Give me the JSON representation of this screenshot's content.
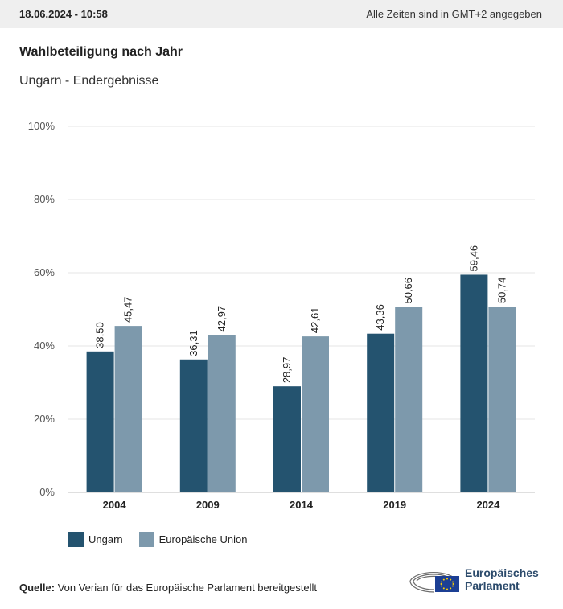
{
  "header": {
    "timestamp": "18.06.2024 - 10:58",
    "timezone_note": "Alle Zeiten sind in GMT+2 angegeben"
  },
  "title": "Wahlbeteiligung nach Jahr",
  "subtitle": "Ungarn - Endergebnisse",
  "colors": {
    "ungarn": "#24536f",
    "eu": "#7d99ac",
    "grid": "#e4e4e4",
    "axis": "#bfbfbf",
    "brand": "#2b4a6b"
  },
  "chart_data": {
    "type": "bar",
    "categories": [
      "2004",
      "2009",
      "2014",
      "2019",
      "2024"
    ],
    "series": [
      {
        "name": "Ungarn",
        "values": [
          38.5,
          36.31,
          28.97,
          43.36,
          59.46
        ],
        "labels": [
          "38,50",
          "36,31",
          "28,97",
          "43,36",
          "59,46"
        ]
      },
      {
        "name": "Europäische Union",
        "values": [
          45.47,
          42.97,
          42.61,
          50.66,
          50.74
        ],
        "labels": [
          "45,47",
          "42,97",
          "42,61",
          "50,66",
          "50,74"
        ]
      }
    ],
    "ylim": [
      0,
      100
    ],
    "yticks": [
      0,
      20,
      40,
      60,
      80,
      100
    ],
    "ytick_labels": [
      "0%",
      "20%",
      "40%",
      "60%",
      "80%",
      "100%"
    ],
    "grid": true,
    "legend_position": "bottom-left"
  },
  "source": {
    "label": "Quelle:",
    "text": "Von Verian für das Europäische Parlament bereitgestellt"
  },
  "logo": {
    "line1": "Europäisches",
    "line2": "Parlament"
  }
}
